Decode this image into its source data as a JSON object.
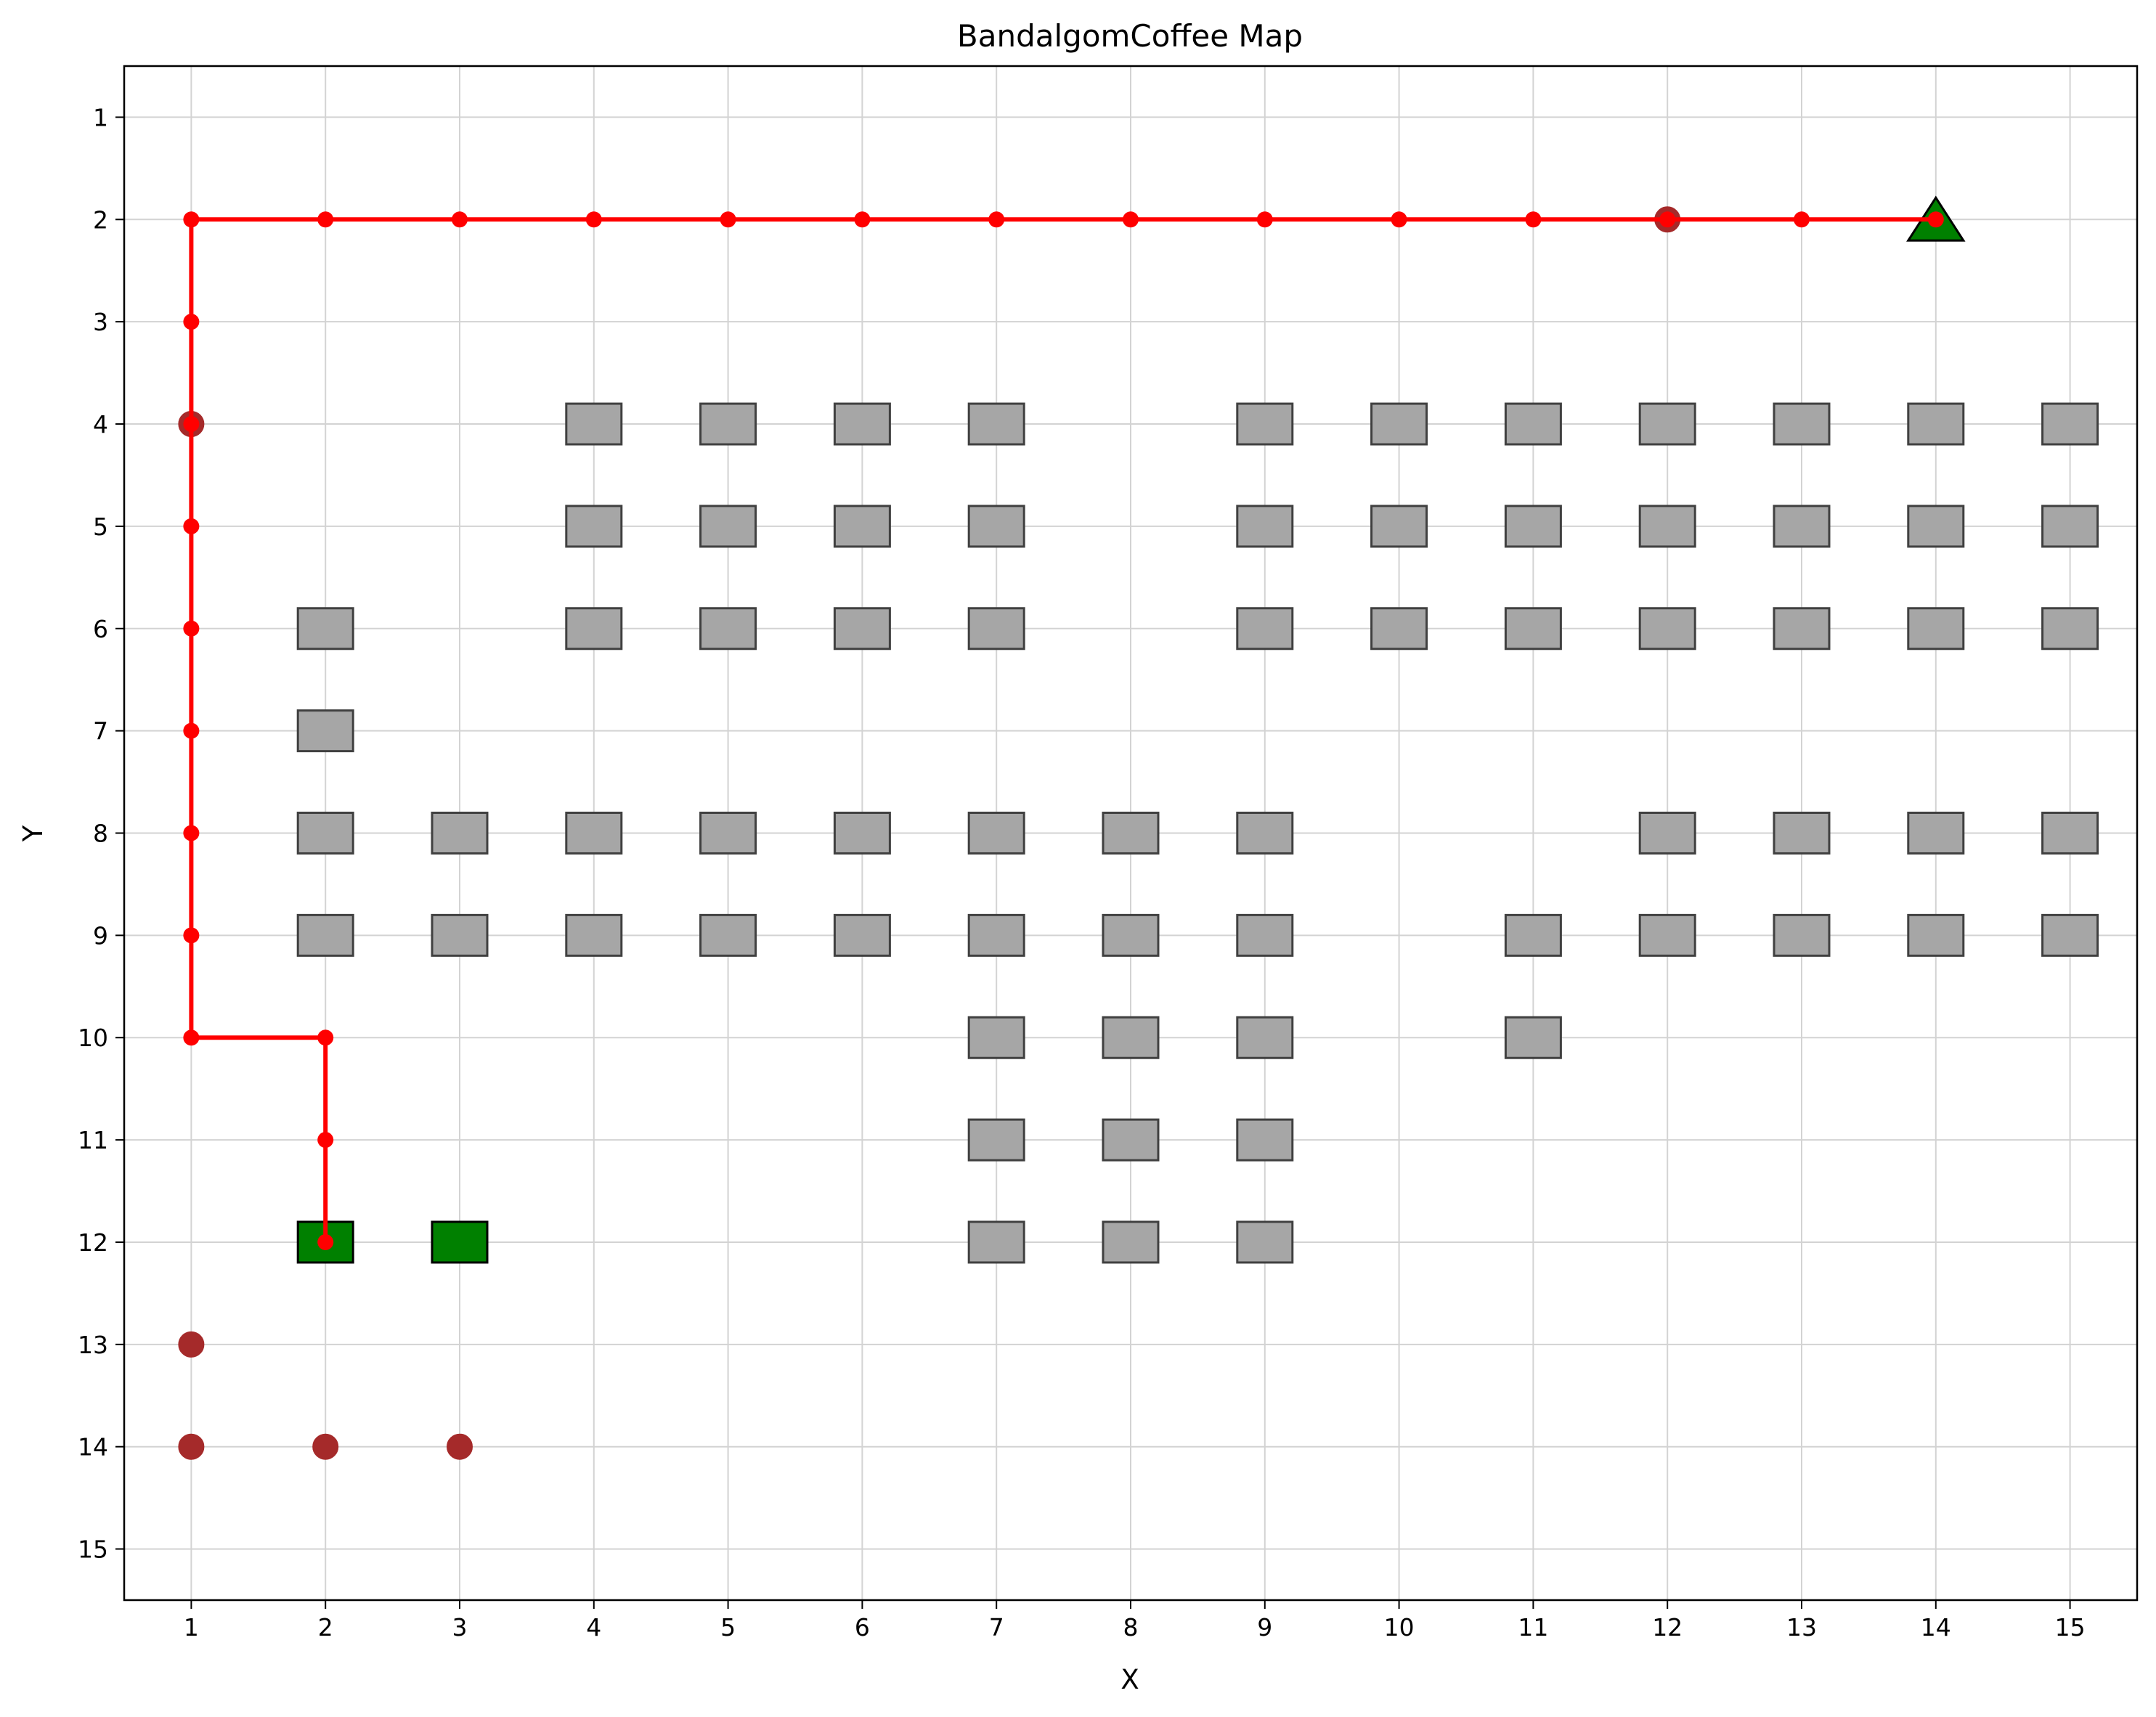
{
  "chart_data": {
    "type": "scatter",
    "title": "BandalgomCoffee Map",
    "xlabel": "X",
    "ylabel": "Y",
    "xlim": [
      0.5,
      15.5
    ],
    "ylim": [
      15.5,
      0.5
    ],
    "y_inverted": true,
    "xticks": [
      "1",
      "2",
      "3",
      "4",
      "5",
      "6",
      "7",
      "8",
      "9",
      "10",
      "11",
      "12",
      "13",
      "14",
      "15"
    ],
    "yticks": [
      "1",
      "2",
      "3",
      "4",
      "5",
      "6",
      "7",
      "8",
      "9",
      "10",
      "11",
      "12",
      "13",
      "14",
      "15"
    ],
    "grid": true,
    "legend": "none",
    "colors": {
      "construction": "#a6a6a6",
      "construction_edge": "#404040",
      "mycoffee": "#008000",
      "home": "#008000",
      "bandalgom": "#a52a2a",
      "path": "#ff0000",
      "grid": "#d3d3d3"
    },
    "construction": [
      [
        4,
        4
      ],
      [
        5,
        4
      ],
      [
        6,
        4
      ],
      [
        7,
        4
      ],
      [
        9,
        4
      ],
      [
        10,
        4
      ],
      [
        11,
        4
      ],
      [
        12,
        4
      ],
      [
        13,
        4
      ],
      [
        14,
        4
      ],
      [
        15,
        4
      ],
      [
        4,
        5
      ],
      [
        5,
        5
      ],
      [
        6,
        5
      ],
      [
        7,
        5
      ],
      [
        9,
        5
      ],
      [
        10,
        5
      ],
      [
        11,
        5
      ],
      [
        12,
        5
      ],
      [
        13,
        5
      ],
      [
        14,
        5
      ],
      [
        15,
        5
      ],
      [
        2,
        6
      ],
      [
        4,
        6
      ],
      [
        5,
        6
      ],
      [
        6,
        6
      ],
      [
        7,
        6
      ],
      [
        9,
        6
      ],
      [
        10,
        6
      ],
      [
        11,
        6
      ],
      [
        12,
        6
      ],
      [
        13,
        6
      ],
      [
        14,
        6
      ],
      [
        15,
        6
      ],
      [
        2,
        7
      ],
      [
        2,
        8
      ],
      [
        3,
        8
      ],
      [
        4,
        8
      ],
      [
        5,
        8
      ],
      [
        6,
        8
      ],
      [
        7,
        8
      ],
      [
        8,
        8
      ],
      [
        9,
        8
      ],
      [
        12,
        8
      ],
      [
        13,
        8
      ],
      [
        14,
        8
      ],
      [
        15,
        8
      ],
      [
        2,
        9
      ],
      [
        3,
        9
      ],
      [
        4,
        9
      ],
      [
        5,
        9
      ],
      [
        6,
        9
      ],
      [
        7,
        9
      ],
      [
        8,
        9
      ],
      [
        9,
        9
      ],
      [
        11,
        9
      ],
      [
        12,
        9
      ],
      [
        13,
        9
      ],
      [
        14,
        9
      ],
      [
        15,
        9
      ],
      [
        7,
        10
      ],
      [
        8,
        10
      ],
      [
        9,
        10
      ],
      [
        11,
        10
      ],
      [
        7,
        11
      ],
      [
        8,
        11
      ],
      [
        9,
        11
      ],
      [
        7,
        12
      ],
      [
        8,
        12
      ],
      [
        9,
        12
      ]
    ],
    "mycoffee": [
      [
        2,
        12
      ],
      [
        3,
        12
      ]
    ],
    "home": [
      [
        14,
        2
      ]
    ],
    "bandalgom": [
      [
        1,
        4
      ],
      [
        12,
        2
      ],
      [
        1,
        13
      ],
      [
        1,
        14
      ],
      [
        2,
        14
      ],
      [
        3,
        14
      ]
    ],
    "path": [
      [
        2,
        12
      ],
      [
        2,
        11
      ],
      [
        2,
        10
      ],
      [
        1,
        10
      ],
      [
        1,
        9
      ],
      [
        1,
        8
      ],
      [
        1,
        7
      ],
      [
        1,
        6
      ],
      [
        1,
        5
      ],
      [
        1,
        4
      ],
      [
        1,
        3
      ],
      [
        1,
        2
      ],
      [
        2,
        2
      ],
      [
        3,
        2
      ],
      [
        4,
        2
      ],
      [
        5,
        2
      ],
      [
        6,
        2
      ],
      [
        7,
        2
      ],
      [
        8,
        2
      ],
      [
        9,
        2
      ],
      [
        10,
        2
      ],
      [
        11,
        2
      ],
      [
        12,
        2
      ],
      [
        13,
        2
      ],
      [
        14,
        2
      ]
    ]
  }
}
